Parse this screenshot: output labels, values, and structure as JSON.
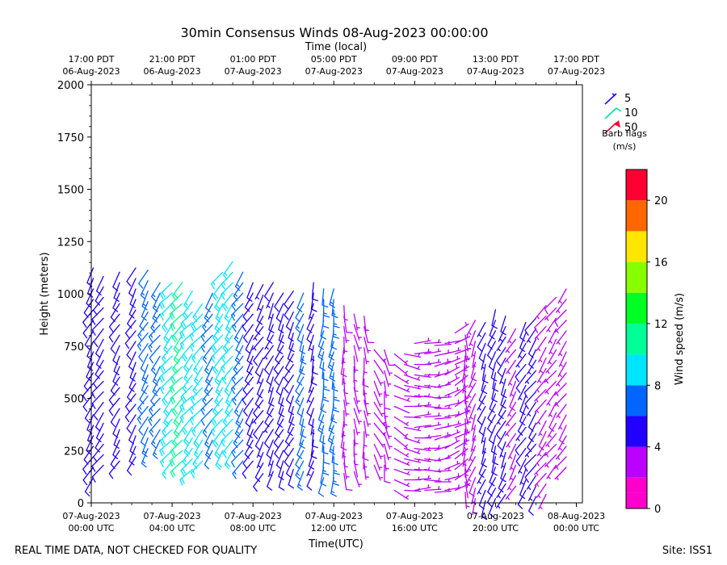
{
  "chart_data": {
    "type": "wind-barb",
    "title": "30min Consensus Winds 08-Aug-2023 00:00:00",
    "top_axis_label": "Time (local)",
    "top_ticks": [
      {
        "hour": 0,
        "line1": "17:00 PDT",
        "line2": "06-Aug-2023"
      },
      {
        "hour": 4,
        "line1": "21:00 PDT",
        "line2": "06-Aug-2023"
      },
      {
        "hour": 8,
        "line1": "01:00 PDT",
        "line2": "07-Aug-2023"
      },
      {
        "hour": 12,
        "line1": "05:00 PDT",
        "line2": "07-Aug-2023"
      },
      {
        "hour": 16,
        "line1": "09:00 PDT",
        "line2": "07-Aug-2023"
      },
      {
        "hour": 20,
        "line1": "13:00 PDT",
        "line2": "07-Aug-2023"
      },
      {
        "hour": 24,
        "line1": "17:00 PDT",
        "line2": "07-Aug-2023"
      }
    ],
    "bottom_ticks": [
      {
        "hour": 0,
        "line1": "07-Aug-2023",
        "line2": "00:00 UTC"
      },
      {
        "hour": 4,
        "line1": "07-Aug-2023",
        "line2": "04:00 UTC"
      },
      {
        "hour": 8,
        "line1": "07-Aug-2023",
        "line2": "08:00 UTC"
      },
      {
        "hour": 12,
        "line1": "07-Aug-2023",
        "line2": "12:00 UTC"
      },
      {
        "hour": 16,
        "line1": "07-Aug-2023",
        "line2": "16:00 UTC"
      },
      {
        "hour": 20,
        "line1": "07-Aug-2023",
        "line2": "20:00 UTC"
      },
      {
        "hour": 24,
        "line1": "08-Aug-2023",
        "line2": "00:00 UTC"
      }
    ],
    "xlabel": "Time(UTC)",
    "ylabel": "Height (meters)",
    "xlim": [
      0,
      24.3
    ],
    "ylim": [
      0,
      2000
    ],
    "y_ticks": [
      0,
      250,
      500,
      750,
      1000,
      1250,
      1500,
      1750,
      2000
    ],
    "y_tick_labels": [
      "0",
      "250",
      "500",
      "750",
      "1000",
      "1250",
      "1500",
      "1750",
      "2000"
    ],
    "legend": {
      "items": [
        {
          "value": 5,
          "label": "5",
          "color": "#1f00ff"
        },
        {
          "value": 10,
          "label": "10",
          "color": "#00e0a0"
        },
        {
          "value": 50,
          "label": "50",
          "color": "#ff0030"
        }
      ],
      "title_line1": "Barb flags",
      "title_line2": "(m/s)"
    },
    "colorbar": {
      "label": "Wind speed (m/s)",
      "min": 0,
      "max": 22,
      "bins": [
        {
          "from": 0,
          "to": 1,
          "color": "#ff00cc"
        },
        {
          "from": 1,
          "to": 2,
          "color": "#ff00cc"
        },
        {
          "from": 2,
          "to": 4,
          "color": "#bb00ff"
        },
        {
          "from": 4,
          "to": 6,
          "color": "#2200ff"
        },
        {
          "from": 6,
          "to": 8,
          "color": "#0066ff"
        },
        {
          "from": 8,
          "to": 10,
          "color": "#00e5ff"
        },
        {
          "from": 10,
          "to": 12,
          "color": "#00ff99"
        },
        {
          "from": 12,
          "to": 14,
          "color": "#00ff22"
        },
        {
          "from": 14,
          "to": 16,
          "color": "#88ff00"
        },
        {
          "from": 16,
          "to": 18,
          "color": "#ffe600"
        },
        {
          "from": 18,
          "to": 20,
          "color": "#ff6600"
        },
        {
          "from": 20,
          "to": 22,
          "color": "#ff0033"
        }
      ],
      "ticks": [
        0,
        4,
        8,
        12,
        16,
        20
      ],
      "tick_labels": [
        "0",
        "4",
        "8",
        "12",
        "16",
        "20"
      ]
    },
    "columns": [
      {
        "hour": 0.1,
        "top": 1150,
        "bottom": 120,
        "speed": 5,
        "dir": 210
      },
      {
        "hour": 0.6,
        "top": 1130,
        "bottom": 180,
        "speed": 5,
        "dir": 215
      },
      {
        "hour": 1.4,
        "top": 1130,
        "bottom": 200,
        "speed": 5,
        "dir": 210
      },
      {
        "hour": 2.2,
        "top": 1140,
        "bottom": 220,
        "speed": 5,
        "dir": 210
      },
      {
        "hour": 2.8,
        "top": 1120,
        "bottom": 260,
        "speed": 6,
        "dir": 210
      },
      {
        "hour": 3.4,
        "top": 1100,
        "bottom": 300,
        "speed": 7,
        "dir": 215
      },
      {
        "hour": 4.0,
        "top": 1080,
        "bottom": 200,
        "speed": 9,
        "dir": 220
      },
      {
        "hour": 4.5,
        "top": 1060,
        "bottom": 200,
        "speed": 10,
        "dir": 220
      },
      {
        "hour": 5.0,
        "top": 1040,
        "bottom": 160,
        "speed": 9,
        "dir": 220
      },
      {
        "hour": 5.5,
        "top": 1000,
        "bottom": 200,
        "speed": 8,
        "dir": 220
      },
      {
        "hour": 6.0,
        "top": 1050,
        "bottom": 250,
        "speed": 7,
        "dir": 215
      },
      {
        "hour": 6.5,
        "top": 1120,
        "bottom": 250,
        "speed": 9,
        "dir": 215
      },
      {
        "hour": 7.0,
        "top": 1170,
        "bottom": 250,
        "speed": 8,
        "dir": 215
      },
      {
        "hour": 7.5,
        "top": 1150,
        "bottom": 200,
        "speed": 7,
        "dir": 215
      },
      {
        "hour": 8.0,
        "top": 1100,
        "bottom": 200,
        "speed": 5,
        "dir": 210
      },
      {
        "hour": 8.5,
        "top": 1080,
        "bottom": 140,
        "speed": 4,
        "dir": 210
      },
      {
        "hour": 9.0,
        "top": 1080,
        "bottom": 150,
        "speed": 4,
        "dir": 205
      },
      {
        "hour": 9.5,
        "top": 1050,
        "bottom": 150,
        "speed": 5,
        "dir": 205
      },
      {
        "hour": 10.0,
        "top": 1030,
        "bottom": 160,
        "speed": 5,
        "dir": 205
      },
      {
        "hour": 10.5,
        "top": 1050,
        "bottom": 150,
        "speed": 6,
        "dir": 200
      },
      {
        "hour": 11.0,
        "top": 1080,
        "bottom": 150,
        "speed": 4,
        "dir": 195
      },
      {
        "hour": 11.5,
        "top": 1060,
        "bottom": 120,
        "speed": 6,
        "dir": 190
      },
      {
        "hour": 12.0,
        "top": 1040,
        "bottom": 120,
        "speed": 7,
        "dir": 190
      },
      {
        "hour": 12.5,
        "top": 960,
        "bottom": 140,
        "speed": 3,
        "dir": 180
      },
      {
        "hour": 13.0,
        "top": 940,
        "bottom": 150,
        "speed": 2,
        "dir": 170
      },
      {
        "hour": 13.5,
        "top": 920,
        "bottom": 190,
        "speed": 3,
        "dir": 175
      },
      {
        "hour": 14.0,
        "top": 760,
        "bottom": 180,
        "speed": 2,
        "dir": 150
      },
      {
        "hour": 14.5,
        "top": 740,
        "bottom": 180,
        "speed": 3,
        "dir": 170
      },
      {
        "hour": 15.0,
        "top": 740,
        "bottom": 60,
        "speed": 2,
        "dir": 120
      },
      {
        "hour": 15.5,
        "top": 760,
        "bottom": 60,
        "speed": 2,
        "dir": 100
      },
      {
        "hour": 16.0,
        "top": 780,
        "bottom": 60,
        "speed": 2,
        "dir": 90
      },
      {
        "hour": 16.5,
        "top": 800,
        "bottom": 60,
        "speed": 2,
        "dir": 90
      },
      {
        "hour": 17.0,
        "top": 760,
        "bottom": 50,
        "speed": 2,
        "dir": 80
      },
      {
        "hour": 17.5,
        "top": 800,
        "bottom": 60,
        "speed": 2,
        "dir": 70
      },
      {
        "hour": 18.0,
        "top": 820,
        "bottom": 60,
        "speed": 2,
        "dir": 60
      },
      {
        "hour": 18.5,
        "top": 850,
        "bottom": 50,
        "speed": 2,
        "dir": 180
      },
      {
        "hour": 19.0,
        "top": 880,
        "bottom": 20,
        "speed": 3,
        "dir": 200
      },
      {
        "hour": 19.5,
        "top": 900,
        "bottom": 10,
        "speed": 4,
        "dir": 200
      },
      {
        "hour": 20.0,
        "top": 940,
        "bottom": 20,
        "speed": 5,
        "dir": 200
      },
      {
        "hour": 20.5,
        "top": 900,
        "bottom": 40,
        "speed": 4,
        "dir": 205
      },
      {
        "hour": 21.0,
        "top": 860,
        "bottom": 80,
        "speed": 3,
        "dir": 210
      },
      {
        "hour": 21.5,
        "top": 880,
        "bottom": 60,
        "speed": 4,
        "dir": 210
      },
      {
        "hour": 22.0,
        "top": 920,
        "bottom": 30,
        "speed": 4,
        "dir": 215
      },
      {
        "hour": 22.5,
        "top": 960,
        "bottom": 40,
        "speed": 3,
        "dir": 215
      },
      {
        "hour": 23.0,
        "top": 1000,
        "bottom": 180,
        "speed": 3,
        "dir": 215
      },
      {
        "hour": 23.5,
        "top": 1060,
        "bottom": 170,
        "speed": 3,
        "dir": 215
      }
    ]
  },
  "footer": {
    "left_note": "REAL TIME DATA, NOT CHECKED FOR QUALITY",
    "site": "Site: ISS1"
  }
}
